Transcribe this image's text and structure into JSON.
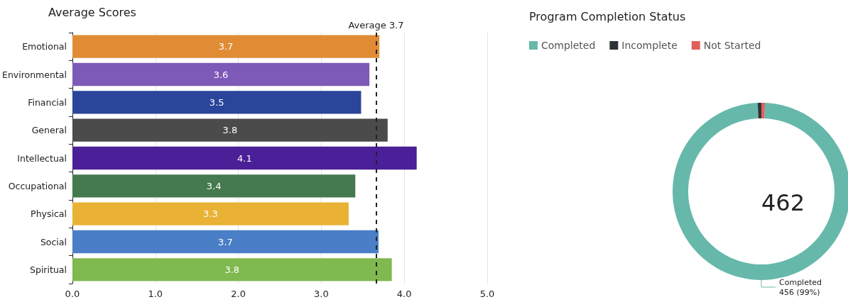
{
  "chart_data": [
    {
      "type": "bar",
      "orientation": "horizontal",
      "title": "Average Scores",
      "categories": [
        "Emotional",
        "Environmental",
        "Financial",
        "General",
        "Intellectual",
        "Occupational",
        "Physical",
        "Social",
        "Spiritual"
      ],
      "values": [
        3.7,
        3.58,
        3.48,
        3.8,
        4.15,
        3.41,
        3.33,
        3.69,
        3.85
      ],
      "value_labels": [
        "3.7",
        "3.6",
        "3.5",
        "3.8",
        "4.1",
        "3.4",
        "3.3",
        "3.7",
        "3.8"
      ],
      "colors": [
        "#e08c35",
        "#7d59b8",
        "#2a4599",
        "#4b4b4b",
        "#4b1f97",
        "#447a4e",
        "#e9b235",
        "#4a7fc7",
        "#80b94f"
      ],
      "xlim": [
        0,
        5
      ],
      "xticks": [
        {
          "value": 0,
          "label": "0.0"
        },
        {
          "value": 1,
          "label": "1.0"
        },
        {
          "value": 2,
          "label": "2.0"
        },
        {
          "value": 3,
          "label": "3.0"
        },
        {
          "value": 4,
          "label": "4.0"
        },
        {
          "value": 5,
          "label": "5.0"
        }
      ],
      "grid": "x",
      "ref_lines": [
        {
          "axis": "x",
          "value": 3.66,
          "label": "Average 3.7",
          "color": "#222222",
          "line_style": "dashed"
        }
      ]
    },
    {
      "type": "donut",
      "title": "Program Completion Status",
      "categories": [
        "Completed",
        "Incomplete",
        "Not Started"
      ],
      "values": [
        456,
        3,
        3
      ],
      "colors": [
        "#66b8aa",
        "#2d3338",
        "#e0605a"
      ],
      "value_labels": [
        "456 (99%)",
        null,
        null
      ],
      "legend": "top left",
      "annotations": [
        "462"
      ]
    }
  ]
}
